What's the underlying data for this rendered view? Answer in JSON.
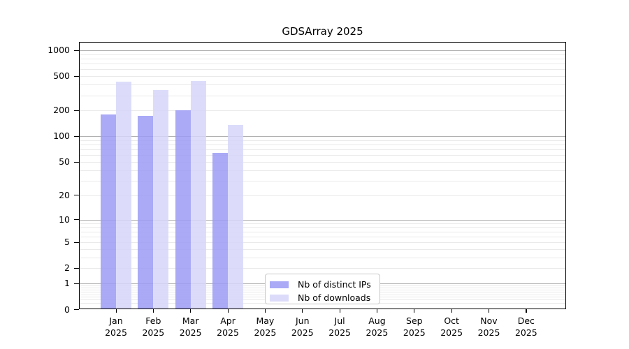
{
  "chart_data": {
    "type": "bar",
    "title": "GDSArray 2025",
    "year": "2025",
    "categories": [
      "Jan",
      "Feb",
      "Mar",
      "Apr",
      "May",
      "Jun",
      "Jul",
      "Aug",
      "Sep",
      "Oct",
      "Nov",
      "Dec"
    ],
    "series": [
      {
        "name": "Nb of distinct IPs",
        "color": "#9b9bf6",
        "values": [
          180,
          175,
          200,
          64,
          null,
          null,
          null,
          null,
          null,
          null,
          null,
          null
        ]
      },
      {
        "name": "Nb of downloads",
        "color": "#d6d6f9",
        "values": [
          435,
          345,
          440,
          136,
          null,
          null,
          null,
          null,
          null,
          null,
          null,
          null
        ]
      }
    ],
    "y_axis": {
      "scale": "log(1+y)",
      "ticks": [
        0,
        1,
        2,
        5,
        10,
        20,
        50,
        100,
        200,
        500,
        1000
      ],
      "major_grid_values": [
        1,
        10,
        100,
        1000
      ],
      "ylim": [
        0,
        1200
      ]
    },
    "x_axis": {
      "tick_label_format": "month over year, two lines"
    },
    "legend": {
      "position": "inside-bottom-center",
      "entries": [
        "Nb of distinct IPs",
        "Nb of downloads"
      ]
    },
    "colors": {
      "bar_distinct_ips": "#9b9bf6",
      "bar_downloads": "#d6d6f9",
      "major_grid": "#b0b0b0",
      "minor_grid": "#eaeaea",
      "spine": "#000000",
      "background": "#ffffff"
    },
    "grid": "horizontal major+minor, log-style"
  }
}
